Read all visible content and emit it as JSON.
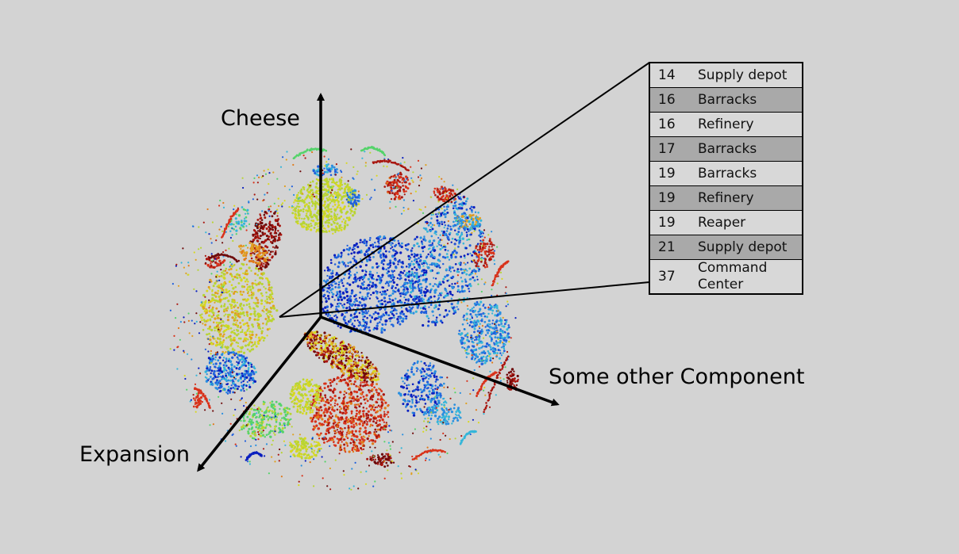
{
  "chart_data": {
    "type": "scatter",
    "axes": {
      "vertical": "Cheese",
      "horizontal": "Some other Component",
      "depth": "Expansion"
    },
    "colors": [
      "#0a1fbf",
      "#1f5fdc",
      "#2a8fe0",
      "#35b6d9",
      "#55d36a",
      "#b8d433",
      "#d8d820",
      "#e0a020",
      "#e07a1a",
      "#d8321a",
      "#a8160f",
      "#6e0a0a"
    ],
    "build_order": [
      {
        "time": "14",
        "unit": "Supply depot"
      },
      {
        "time": "16",
        "unit": "Barracks"
      },
      {
        "time": "16",
        "unit": "Refinery"
      },
      {
        "time": "17",
        "unit": "Barracks"
      },
      {
        "time": "19",
        "unit": "Barracks"
      },
      {
        "time": "19",
        "unit": "Refinery"
      },
      {
        "time": "19",
        "unit": "Reaper"
      },
      {
        "time": "21",
        "unit": "Supply depot"
      },
      {
        "time": "37",
        "unit": "Command Center"
      }
    ]
  }
}
